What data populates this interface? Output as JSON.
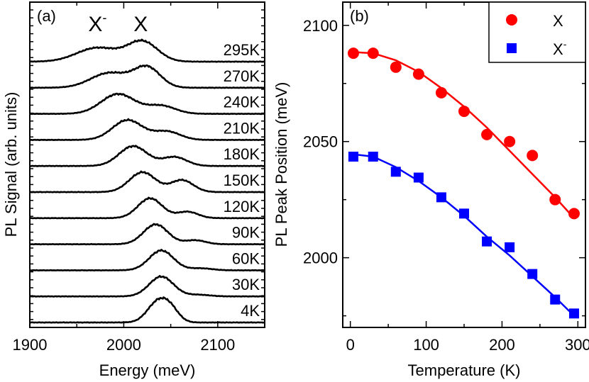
{
  "chart_data": [
    {
      "panel": "(a)",
      "type": "line",
      "xlabel": "Energy (meV)",
      "ylabel": "PL Signal (arb. units)",
      "xlim": [
        1900,
        2150
      ],
      "xticks": [
        1900,
        2000,
        2100
      ],
      "peak_labels": [
        {
          "text": "X",
          "superscript": "-",
          "x": 1972
        },
        {
          "text": "X",
          "superscript": "",
          "x": 2018
        }
      ],
      "series": [
        {
          "name": "4K",
          "peaks": [
            {
              "x": 2036,
              "w": 11,
              "a": 1.0
            },
            {
              "x": 2050,
              "w": 9,
              "a": 0.55
            }
          ]
        },
        {
          "name": "30K",
          "peaks": [
            {
              "x": 2040,
              "w": 13,
              "a": 1.0
            },
            {
              "x": 2080,
              "w": 12,
              "a": 0.08
            }
          ]
        },
        {
          "name": "60K",
          "peaks": [
            {
              "x": 2040,
              "w": 13,
              "a": 1.0
            },
            {
              "x": 2082,
              "w": 12,
              "a": 0.1
            }
          ]
        },
        {
          "name": "90K",
          "peaks": [
            {
              "x": 2034,
              "w": 13,
              "a": 1.0
            },
            {
              "x": 2076,
              "w": 11,
              "a": 0.2
            }
          ]
        },
        {
          "name": "120K",
          "peaks": [
            {
              "x": 2028,
              "w": 13,
              "a": 1.0
            },
            {
              "x": 2068,
              "w": 11,
              "a": 0.32
            }
          ]
        },
        {
          "name": "150K",
          "peaks": [
            {
              "x": 2020,
              "w": 14,
              "a": 1.0
            },
            {
              "x": 2062,
              "w": 12,
              "a": 0.6
            }
          ]
        },
        {
          "name": "180K",
          "peaks": [
            {
              "x": 2010,
              "w": 15,
              "a": 1.0
            },
            {
              "x": 2054,
              "w": 13,
              "a": 0.45
            }
          ]
        },
        {
          "name": "210K",
          "peaks": [
            {
              "x": 2004,
              "w": 16,
              "a": 1.0
            },
            {
              "x": 2046,
              "w": 14,
              "a": 0.42
            }
          ]
        },
        {
          "name": "240K",
          "peaks": [
            {
              "x": 1994,
              "w": 18,
              "a": 1.0
            },
            {
              "x": 2040,
              "w": 15,
              "a": 0.4
            }
          ]
        },
        {
          "name": "270K",
          "peaks": [
            {
              "x": 1985,
              "w": 20,
              "a": 0.75
            },
            {
              "x": 2025,
              "w": 14,
              "a": 1.0
            }
          ]
        },
        {
          "name": "295K",
          "peaks": [
            {
              "x": 1972,
              "w": 22,
              "a": 0.7
            },
            {
              "x": 2020,
              "w": 16,
              "a": 1.0
            }
          ]
        }
      ]
    },
    {
      "panel": "(b)",
      "type": "scatter",
      "xlabel": "Temperature (K)",
      "ylabel": "PL Peak Position (meV)",
      "xlim": [
        -10,
        310
      ],
      "ylim": [
        1970,
        2110
      ],
      "xticks": [
        0,
        100,
        200,
        300
      ],
      "yticks": [
        2000,
        2050,
        2100
      ],
      "legend_position": "top-right",
      "series": [
        {
          "name": "X",
          "superscript": "",
          "color": "#ff0000",
          "marker": "circle",
          "points": [
            [
              4,
              2088
            ],
            [
              30,
              2088
            ],
            [
              60,
              2082
            ],
            [
              90,
              2079
            ],
            [
              120,
              2071
            ],
            [
              150,
              2063
            ],
            [
              180,
              2053
            ],
            [
              210,
              2050
            ],
            [
              240,
              2044
            ],
            [
              270,
              2025
            ],
            [
              295,
              2019
            ]
          ],
          "fit": [
            [
              4,
              2088.5
            ],
            [
              30,
              2088
            ],
            [
              60,
              2085
            ],
            [
              90,
              2080
            ],
            [
              120,
              2073
            ],
            [
              150,
              2065
            ],
            [
              180,
              2056
            ],
            [
              210,
              2046
            ],
            [
              240,
              2036
            ],
            [
              270,
              2026
            ],
            [
              295,
              2017
            ]
          ]
        },
        {
          "name": "X",
          "superscript": "-",
          "color": "#0000ff",
          "marker": "square",
          "points": [
            [
              4,
              2043.5
            ],
            [
              30,
              2043.5
            ],
            [
              60,
              2037
            ],
            [
              90,
              2034.5
            ],
            [
              120,
              2026
            ],
            [
              150,
              2019
            ],
            [
              180,
              2007
            ],
            [
              210,
              2004.5
            ],
            [
              240,
              1993
            ],
            [
              270,
              1982
            ],
            [
              295,
              1976
            ]
          ],
          "fit": [
            [
              4,
              2044.5
            ],
            [
              30,
              2043.5
            ],
            [
              60,
              2039
            ],
            [
              90,
              2033
            ],
            [
              120,
              2026
            ],
            [
              150,
              2018
            ],
            [
              180,
              2009
            ],
            [
              210,
              2001
            ],
            [
              240,
              1992
            ],
            [
              270,
              1983
            ],
            [
              295,
              1975
            ]
          ]
        }
      ]
    }
  ]
}
